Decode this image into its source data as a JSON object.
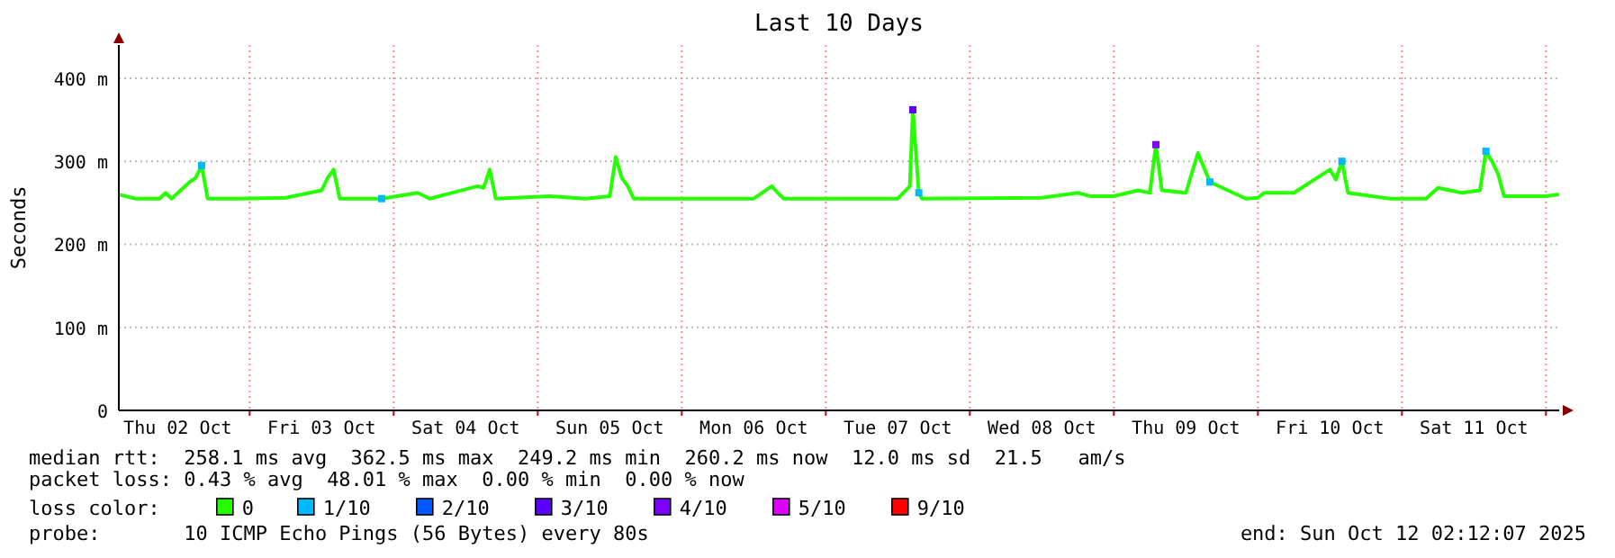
{
  "chart_data": {
    "type": "line",
    "title": "Last 10 Days",
    "ylabel": "Seconds",
    "legend_title": "loss color:",
    "legend": "bottom",
    "grid": true,
    "line_style": "solid",
    "xlim": [
      "2025-10-02T02:12",
      "2025-10-12T02:12"
    ],
    "xticks": [
      {
        "value": "2025-10-03T00:00",
        "label": null
      },
      {
        "value": "2025-10-04T00:00",
        "label": null
      },
      {
        "value": "2025-10-05T00:00",
        "label": null
      },
      {
        "value": "2025-10-06T00:00",
        "label": null
      },
      {
        "value": "2025-10-07T00:00",
        "label": null
      },
      {
        "value": "2025-10-08T00:00",
        "label": null
      },
      {
        "value": "2025-10-09T00:00",
        "label": null
      },
      {
        "value": "2025-10-10T00:00",
        "label": null
      },
      {
        "value": "2025-10-11T00:00",
        "label": null
      },
      {
        "value": "2025-10-12T00:00",
        "label": null
      },
      {
        "value": "2025-10-02T12:00",
        "label": "Thu 02 Oct"
      },
      {
        "value": "2025-10-03T12:00",
        "label": "Fri 03 Oct"
      },
      {
        "value": "2025-10-04T12:00",
        "label": "Sat 04 Oct"
      },
      {
        "value": "2025-10-05T12:00",
        "label": "Sun 05 Oct"
      },
      {
        "value": "2025-10-06T12:00",
        "label": "Mon 06 Oct"
      },
      {
        "value": "2025-10-07T12:00",
        "label": "Tue 07 Oct"
      },
      {
        "value": "2025-10-08T12:00",
        "label": "Wed 08 Oct"
      },
      {
        "value": "2025-10-09T12:00",
        "label": "Thu 09 Oct"
      },
      {
        "value": "2025-10-10T12:00",
        "label": "Fri 10 Oct"
      },
      {
        "value": "2025-10-11T12:00",
        "label": "Sat 11 Oct"
      }
    ],
    "ylim": [
      0,
      440
    ],
    "yticks": [
      0,
      {
        "value": 100,
        "label": "100 m"
      },
      {
        "value": 200,
        "label": "200 m"
      },
      {
        "value": 300,
        "label": "300 m"
      },
      {
        "value": 400,
        "label": "400 m"
      }
    ],
    "series": [
      {
        "name": "0",
        "color": "#26ff00",
        "marker": "none",
        "x": [
          "2025-10-02T02:12",
          "2025-10-02T05:00",
          "2025-10-02T09:00",
          "2025-10-02T10:00",
          "2025-10-02T11:00",
          "2025-10-02T14:00",
          "2025-10-02T15:00",
          "2025-10-02T16:00",
          "2025-10-02T17:00",
          "2025-10-02T22:00",
          "2025-10-03T06:00",
          "2025-10-03T12:00",
          "2025-10-03T13:00",
          "2025-10-03T14:00",
          "2025-10-03T15:00",
          "2025-10-03T22:00",
          "2025-10-04T04:00",
          "2025-10-04T06:00",
          "2025-10-04T14:00",
          "2025-10-04T15:00",
          "2025-10-04T16:00",
          "2025-10-04T17:00",
          "2025-10-05T02:00",
          "2025-10-05T08:00",
          "2025-10-05T12:00",
          "2025-10-05T13:00",
          "2025-10-05T14:00",
          "2025-10-05T15:00",
          "2025-10-05T16:00",
          "2025-10-06T12:00",
          "2025-10-06T15:00",
          "2025-10-06T16:00",
          "2025-10-06T17:00",
          "2025-10-07T12:00",
          "2025-10-07T14:00",
          "2025-10-07T14:30",
          "2025-10-07T15:30",
          "2025-10-07T16:00",
          "2025-10-08T12:00",
          "2025-10-08T18:00",
          "2025-10-08T20:00",
          "2025-10-09T00:00",
          "2025-10-09T04:00",
          "2025-10-09T06:00",
          "2025-10-09T07:00",
          "2025-10-09T08:00",
          "2025-10-09T12:00",
          "2025-10-09T14:00",
          "2025-10-09T16:00",
          "2025-10-09T22:00",
          "2025-10-10T00:00",
          "2025-10-10T01:00",
          "2025-10-10T06:00",
          "2025-10-10T12:00",
          "2025-10-10T13:00",
          "2025-10-10T14:00",
          "2025-10-10T15:00",
          "2025-10-10T22:00",
          "2025-10-11T04:00",
          "2025-10-11T06:00",
          "2025-10-11T10:00",
          "2025-10-11T13:00",
          "2025-10-11T14:00",
          "2025-10-11T15:00",
          "2025-10-11T16:00",
          "2025-10-11T17:00",
          "2025-10-12T00:00",
          "2025-10-12T02:12"
        ],
        "values": [
          260,
          255,
          255,
          262,
          255,
          275,
          280,
          295,
          255,
          255,
          256,
          265,
          280,
          290,
          255,
          255,
          262,
          255,
          270,
          268,
          290,
          255,
          258,
          255,
          258,
          305,
          280,
          270,
          255,
          255,
          270,
          262,
          255,
          255,
          270,
          362,
          262,
          255,
          256,
          262,
          258,
          258,
          265,
          262,
          320,
          265,
          262,
          310,
          275,
          255,
          256,
          262,
          262,
          290,
          278,
          300,
          262,
          255,
          255,
          268,
          262,
          265,
          312,
          300,
          285,
          258,
          258,
          260
        ]
      },
      {
        "name": "1/10",
        "color": "#00b8ff",
        "type": "scatter",
        "marker": "square",
        "x": [
          "2025-10-02T16:00",
          "2025-10-03T22:00",
          "2025-10-07T15:30",
          "2025-10-09T16:00",
          "2025-10-10T14:00",
          "2025-10-11T14:00"
        ],
        "values": [
          295,
          255,
          262,
          275,
          300,
          312
        ]
      },
      {
        "name": "2/10",
        "color": "#0059ff",
        "type": "scatter",
        "marker": "square"
      },
      {
        "name": "3/10",
        "color": "#5e00ff",
        "type": "scatter",
        "marker": "square",
        "x": [
          "2025-10-07T14:30"
        ],
        "values": [
          362
        ]
      },
      {
        "name": "4/10",
        "color": "#7e00ff",
        "type": "scatter",
        "marker": "square",
        "x": [
          "2025-10-09T07:00"
        ],
        "values": [
          320
        ]
      },
      {
        "name": "5/10",
        "color": "#dd00ff",
        "type": "scatter",
        "marker": "square"
      },
      {
        "name": "9/10",
        "color": "#ff0000",
        "type": "scatter",
        "marker": "square"
      }
    ],
    "annotations": [
      "median rtt:  258.1 ms avg  362.5 ms max  249.2 ms min  260.2 ms now  12.0 ms sd  21.5   am/s",
      "packet loss: 0.43 % avg  48.01 % max  0.00 % min  0.00 % now",
      "probe:       10 ICMP Echo Pings (56 Bytes) every 80s",
      "end: Sun Oct 12 02:12:07 2025"
    ]
  }
}
